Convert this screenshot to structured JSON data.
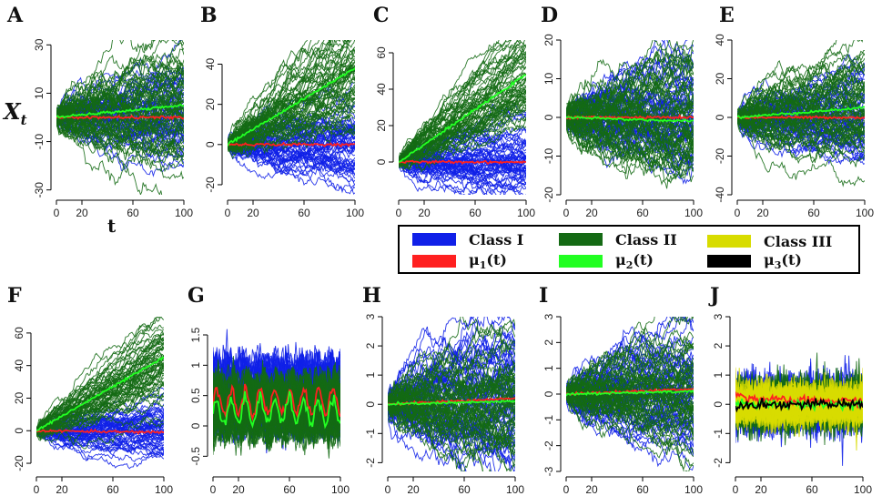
{
  "colors": {
    "class1": "#1020e8",
    "class2": "#146a14",
    "class3": "#d8dc00",
    "mu1": "#ff2020",
    "mu2": "#22ff22",
    "mu3": "#000000"
  },
  "y_axis_label": "X",
  "y_axis_label_sub": "t",
  "x_axis_label": "t",
  "legend": [
    {
      "label": "Class I",
      "color_key": "class1"
    },
    {
      "label": "Class II",
      "color_key": "class2"
    },
    {
      "label": "Class III",
      "color_key": "class3"
    },
    {
      "label": "μ",
      "sub": "1",
      "suffix": "(t)",
      "color_key": "mu1"
    },
    {
      "label": "μ",
      "sub": "2",
      "suffix": "(t)",
      "color_key": "mu2"
    },
    {
      "label": "μ",
      "sub": "3",
      "suffix": "(t)",
      "color_key": "mu3"
    }
  ],
  "chart_data": [
    {
      "panel": "A",
      "type": "line",
      "x_ticks": [
        0,
        20,
        60,
        100
      ],
      "y_ticks": [
        30,
        10,
        -10,
        -30
      ],
      "ylim": [
        -32,
        32
      ],
      "xlim": [
        0,
        100
      ],
      "classes": [
        {
          "name": "Class I",
          "drift": 0,
          "spread": 7
        },
        {
          "name": "Class II",
          "drift": 0.05,
          "spread": 10
        }
      ],
      "means": [
        {
          "name": "μ1(t)",
          "end": 0
        },
        {
          "name": "μ2(t)",
          "end": 5
        }
      ]
    },
    {
      "panel": "B",
      "type": "line",
      "x_ticks": [
        0,
        20,
        60,
        100
      ],
      "y_ticks": [
        40,
        20,
        0,
        -20
      ],
      "ylim": [
        -25,
        52
      ],
      "xlim": [
        0,
        100
      ],
      "classes": [
        {
          "name": "Class I",
          "drift": 0,
          "spread": 8
        },
        {
          "name": "Class II",
          "drift": 0.38,
          "spread": 9
        }
      ],
      "means": [
        {
          "name": "μ1(t)",
          "end": 0
        },
        {
          "name": "μ2(t)",
          "end": 38
        }
      ]
    },
    {
      "panel": "C",
      "type": "line",
      "x_ticks": [
        0,
        20,
        60,
        100
      ],
      "y_ticks": [
        60,
        40,
        20,
        0
      ],
      "ylim": [
        -18,
        67
      ],
      "xlim": [
        0,
        100
      ],
      "classes": [
        {
          "name": "Class I",
          "drift": 0,
          "spread": 8
        },
        {
          "name": "Class II",
          "drift": 0.48,
          "spread": 8
        }
      ],
      "means": [
        {
          "name": "μ1(t)",
          "end": 0
        },
        {
          "name": "μ2(t)",
          "end": 48
        }
      ]
    },
    {
      "panel": "D",
      "type": "line",
      "x_ticks": [
        0,
        20,
        60,
        100
      ],
      "y_ticks": [
        20,
        10,
        0,
        -10,
        -20
      ],
      "ylim": [
        -20,
        20
      ],
      "xlim": [
        0,
        100
      ],
      "classes": [
        {
          "name": "Class I",
          "drift": 0,
          "spread": 6
        },
        {
          "name": "Class II",
          "drift": 0,
          "spread": 7
        }
      ],
      "means": [
        {
          "name": "μ1(t)",
          "end": 0
        },
        {
          "name": "μ2(t)",
          "end": -1
        }
      ]
    },
    {
      "panel": "E",
      "type": "line",
      "x_ticks": [
        0,
        20,
        60,
        100
      ],
      "y_ticks": [
        40,
        20,
        0,
        -20,
        -40
      ],
      "ylim": [
        -40,
        40
      ],
      "xlim": [
        0,
        100
      ],
      "classes": [
        {
          "name": "Class I",
          "drift": 0,
          "spread": 9
        },
        {
          "name": "Class II",
          "drift": 0.05,
          "spread": 11
        }
      ],
      "means": [
        {
          "name": "μ1(t)",
          "end": 0
        },
        {
          "name": "μ2(t)",
          "end": 5
        }
      ]
    },
    {
      "panel": "F",
      "type": "line",
      "x_ticks": [
        0,
        20,
        60,
        100
      ],
      "y_ticks": [
        60,
        40,
        20,
        0,
        -20
      ],
      "ylim": [
        -25,
        70
      ],
      "xlim": [
        0,
        100
      ],
      "classes": [
        {
          "name": "Class I",
          "drift": 0,
          "spread": 7
        },
        {
          "name": "Class II",
          "drift": 0.45,
          "spread": 8
        }
      ],
      "means": [
        {
          "name": "μ1(t)",
          "end": -1
        },
        {
          "name": "μ2(t)",
          "end": 45
        }
      ]
    },
    {
      "panel": "G",
      "type": "line",
      "x_ticks": [
        0,
        20,
        60,
        100
      ],
      "y_ticks": [
        1.5,
        1,
        0.5,
        0,
        -0.5
      ],
      "ylim": [
        -0.75,
        1.8
      ],
      "xlim": [
        0,
        100
      ],
      "classes": [
        {
          "name": "Class I",
          "oscillating": true,
          "center": 0.5,
          "spread": 0.55
        },
        {
          "name": "Class II",
          "oscillating": true,
          "center": 0.3,
          "spread": 0.45
        }
      ],
      "means": [
        {
          "name": "μ1(t)",
          "end": 0.4
        },
        {
          "name": "μ2(t)",
          "end": 0.25
        }
      ]
    },
    {
      "panel": "H",
      "type": "line",
      "x_ticks": [
        0,
        20,
        60,
        100
      ],
      "y_ticks": [
        3,
        2,
        1,
        0,
        -1,
        -2
      ],
      "ylim": [
        -2.3,
        3
      ],
      "xlim": [
        0,
        100
      ],
      "classes": [
        {
          "name": "Class I",
          "drift": 0.002,
          "spread": 1.0
        },
        {
          "name": "Class II",
          "drift": 0,
          "spread": 0.9
        }
      ],
      "means": [
        {
          "name": "μ1(t)",
          "end": 0.2
        },
        {
          "name": "μ2(t)",
          "end": 0.1
        }
      ]
    },
    {
      "panel": "I",
      "type": "line",
      "x_ticks": [
        0,
        20,
        60,
        100
      ],
      "y_ticks": [
        3,
        2,
        1,
        0,
        -1,
        -2,
        -3
      ],
      "ylim": [
        -3,
        3
      ],
      "xlim": [
        0,
        100
      ],
      "classes": [
        {
          "name": "Class I",
          "drift": 0,
          "spread": 0.9
        },
        {
          "name": "Class II",
          "drift": 0,
          "spread": 0.9
        }
      ],
      "means": [
        {
          "name": "μ1(t)",
          "end": 0.2
        },
        {
          "name": "μ2(t)",
          "end": 0.1
        }
      ]
    },
    {
      "panel": "J",
      "type": "line",
      "x_ticks": [
        0,
        20,
        60,
        100
      ],
      "y_ticks": [
        3,
        2,
        1,
        0,
        -1,
        -2
      ],
      "ylim": [
        -2.3,
        3
      ],
      "xlim": [
        0,
        100
      ],
      "classes": [
        {
          "name": "Class I",
          "noise": true,
          "spread": 0.8
        },
        {
          "name": "Class II",
          "noise": true,
          "spread": 0.75
        },
        {
          "name": "Class III",
          "noise": true,
          "spread": 0.6
        }
      ],
      "means": [
        {
          "name": "μ1(t)",
          "end": 0.1
        },
        {
          "name": "μ2(t)",
          "end": 0
        },
        {
          "name": "μ3(t)",
          "end": 0
        }
      ]
    }
  ]
}
